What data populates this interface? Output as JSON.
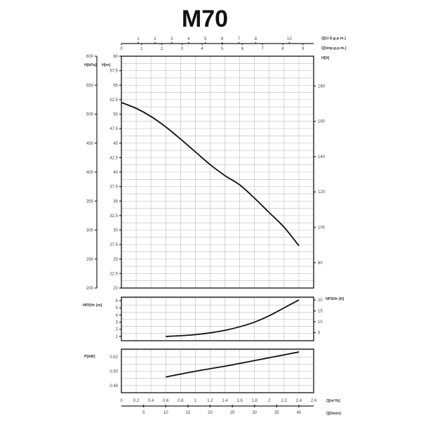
{
  "chart_data": [
    {
      "type": "line",
      "title": "M70",
      "xlabel": "Q[m³/h]",
      "ylabel": "H[m]",
      "ylim": [
        20,
        60
      ],
      "xlim": [
        0,
        2.6
      ],
      "grid": true,
      "x_ticks": [
        "0",
        "0.2",
        "0.4",
        "0.6",
        "0.8",
        "1",
        "1.2",
        "1.4",
        "1.6",
        "1.8",
        "2",
        "2.2",
        "2.4",
        "2.6"
      ],
      "y_ticks": [
        "20",
        "22.5",
        "25",
        "27.5",
        "30",
        "32.5",
        "35",
        "37.5",
        "40",
        "42.5",
        "45",
        "47.5",
        "50",
        "52.5",
        "55",
        "57.5",
        "60"
      ],
      "secondary_axes": {
        "kpa": {
          "label": "H[kPa]",
          "ticks": [
            "200",
            "250",
            "300",
            "350",
            "400",
            "450",
            "500",
            "550",
            "600"
          ]
        },
        "ft": {
          "label": "H[ft]",
          "ticks": [
            "80",
            "100",
            "120",
            "140",
            "160",
            "180"
          ]
        },
        "us_gpm": {
          "label": "Q[U.S.g.p.m.]",
          "ticks": [
            "1",
            "2",
            "3",
            "4",
            "5",
            "6",
            "7",
            "8",
            "10"
          ]
        },
        "imp_gpm": {
          "label": "Q[imp.g.p.m.]",
          "ticks": [
            "0",
            "1",
            "2",
            "3",
            "4",
            "5",
            "6",
            "7",
            "8",
            "9"
          ]
        },
        "lmin": {
          "label": "Q[l/min]",
          "ticks": [
            "5",
            "10",
            "15",
            "20",
            "25",
            "30",
            "35",
            "40"
          ]
        }
      },
      "series": [
        {
          "x": [
            0,
            0.2,
            0.4,
            0.6,
            0.8,
            1.0,
            1.2,
            1.4,
            1.6,
            1.8,
            2.0,
            2.2,
            2.4
          ],
          "y": [
            52,
            51,
            49.6,
            47.8,
            45.7,
            43.5,
            41.3,
            39.4,
            37.8,
            35.5,
            33,
            30.5,
            27.3
          ]
        }
      ]
    },
    {
      "type": "line",
      "ylabel": "NPSHr [m]",
      "y2label": "NPSHr [ft]",
      "ylim": [
        0.4,
        6.5
      ],
      "y_ticks": [
        "1",
        "2",
        "3",
        "4",
        "5",
        "6"
      ],
      "y2_ticks": [
        "5",
        "10",
        "15",
        "20"
      ],
      "grid": true,
      "series": [
        {
          "x": [
            0.6,
            0.8,
            1.0,
            1.2,
            1.4,
            1.6,
            1.8,
            2.0,
            2.2,
            2.4
          ],
          "y": [
            1.0,
            1.1,
            1.25,
            1.5,
            1.85,
            2.35,
            3.0,
            3.9,
            5.0,
            6.1
          ]
        }
      ]
    },
    {
      "type": "line",
      "ylabel": "P[kW]",
      "ylim": [
        0.47,
        0.531
      ],
      "y_ticks": [
        "0.48",
        "0.50",
        "0.52"
      ],
      "grid": true,
      "series": [
        {
          "x": [
            0.6,
            1.0,
            1.5,
            2.0,
            2.4
          ],
          "y": [
            0.492,
            0.5,
            0.509,
            0.519,
            0.527
          ]
        }
      ]
    }
  ]
}
